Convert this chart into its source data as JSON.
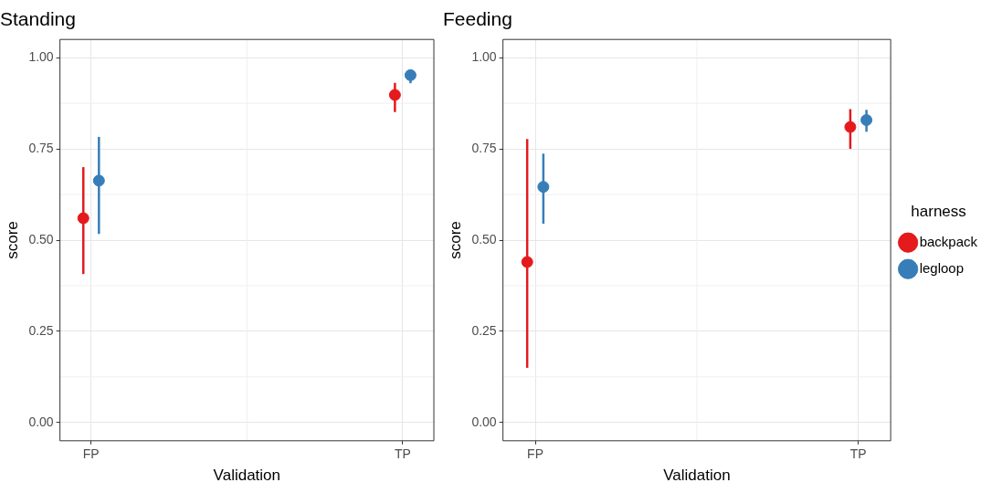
{
  "chart_data": [
    {
      "type": "scatter",
      "title": "Standing",
      "xlabel": "Validation",
      "ylabel": "score",
      "categories": [
        "FP",
        "TP"
      ],
      "ylim": [
        -0.05,
        1.05
      ],
      "yticks": [
        {
          "value": 0,
          "label": "0.00"
        },
        {
          "value": 0.25,
          "label": "0.25"
        },
        {
          "value": 0.5,
          "label": "0.50"
        },
        {
          "value": 0.75,
          "label": "0.75"
        },
        {
          "value": 1,
          "label": "1.00"
        }
      ],
      "grid": true,
      "marker": "circle",
      "legend": false,
      "series": [
        {
          "color": "#e41a1c",
          "values": [
            0.56,
            0.898
          ],
          "errors": [
            [
              0.407,
              0.7
            ],
            [
              0.851,
              0.931
            ]
          ]
        },
        {
          "color": "#377eb8",
          "values": [
            0.663,
            0.952
          ],
          "errors": [
            [
              0.517,
              0.783
            ],
            [
              0.93,
              0.96
            ]
          ]
        }
      ]
    },
    {
      "type": "scatter",
      "title": "Feeding",
      "xlabel": "Validation",
      "ylabel": "score",
      "categories": [
        "FP",
        "TP"
      ],
      "ylim": [
        -0.05,
        1.05
      ],
      "yticks": [
        {
          "value": 0,
          "label": "0.00"
        },
        {
          "value": 0.25,
          "label": "0.25"
        },
        {
          "value": 0.5,
          "label": "0.50"
        },
        {
          "value": 0.75,
          "label": "0.75"
        },
        {
          "value": 1,
          "label": "1.00"
        }
      ],
      "grid": true,
      "marker": "circle",
      "legend": "right",
      "legend_title": "harness",
      "series": [
        {
          "name": "backpack",
          "color": "#e41a1c",
          "values": [
            0.44,
            0.81
          ],
          "errors": [
            [
              0.15,
              0.777
            ],
            [
              0.75,
              0.859
            ]
          ]
        },
        {
          "name": "legloop",
          "color": "#377eb8",
          "values": [
            0.646,
            0.829
          ],
          "errors": [
            [
              0.545,
              0.737
            ],
            [
              0.797,
              0.857
            ]
          ]
        }
      ]
    }
  ]
}
